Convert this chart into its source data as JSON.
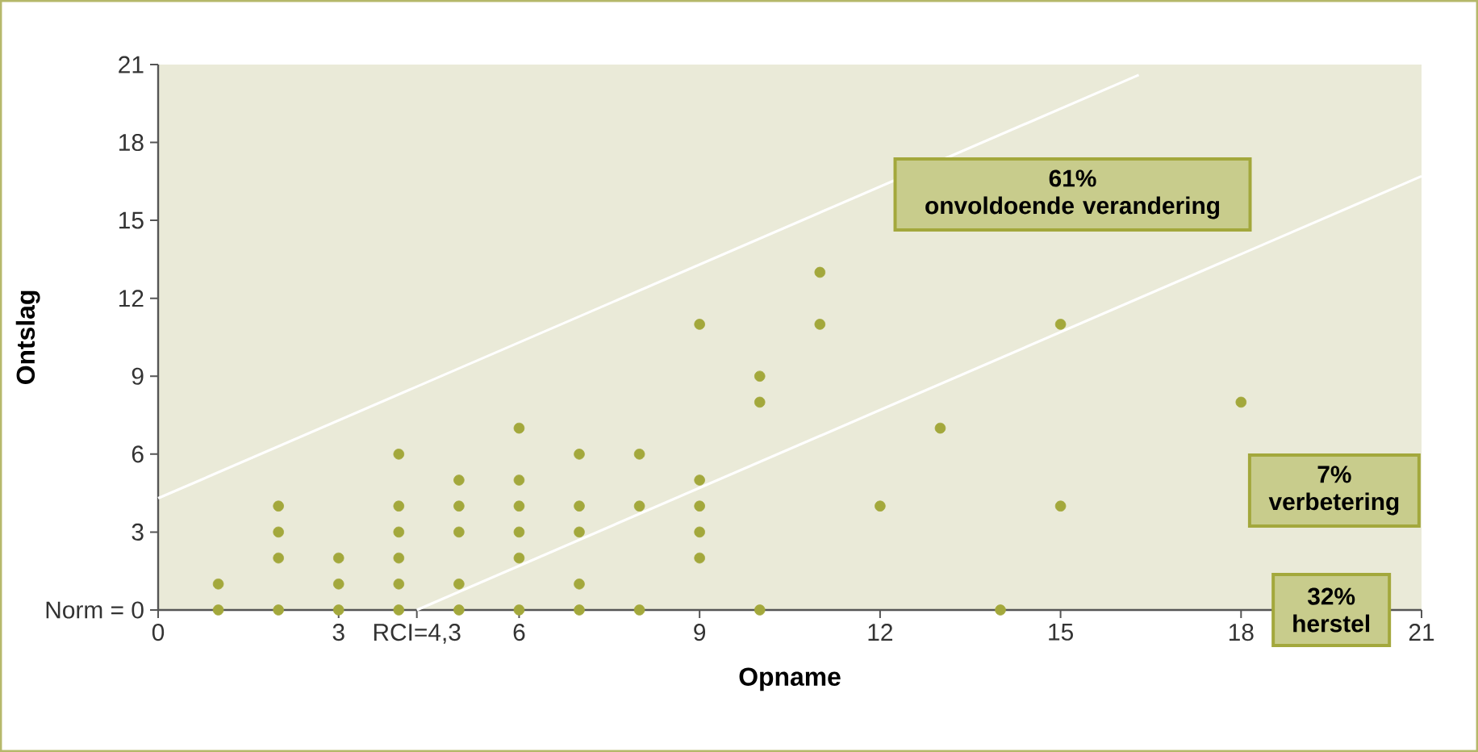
{
  "chart_data": {
    "type": "scatter",
    "xlabel": "Opname",
    "ylabel": "Ontslag",
    "xlim": [
      0,
      21
    ],
    "ylim": [
      0,
      21
    ],
    "xticks": [
      0,
      3,
      {
        "value": 4.3,
        "label": "RCI=4,3"
      },
      6,
      9,
      12,
      15,
      18,
      21
    ],
    "yticks": [
      {
        "value": 0,
        "label": "Norm = 0"
      },
      3,
      6,
      9,
      12,
      15,
      18,
      21
    ],
    "series": [
      {
        "marker": "circle",
        "color": "#a3a83c",
        "x": [
          1,
          1,
          2,
          2,
          2,
          2,
          3,
          3,
          3,
          4,
          4,
          4,
          4,
          4,
          4,
          5,
          5,
          5,
          5,
          5,
          6,
          6,
          6,
          6,
          6,
          6,
          7,
          7,
          7,
          7,
          7,
          8,
          8,
          8,
          9,
          9,
          9,
          9,
          9,
          10,
          10,
          10,
          11,
          11,
          12,
          13,
          14,
          15,
          15,
          18
        ],
        "values": [
          0,
          1,
          0,
          2,
          3,
          4,
          0,
          1,
          2,
          0,
          1,
          2,
          3,
          4,
          6,
          0,
          1,
          3,
          4,
          5,
          0,
          2,
          3,
          4,
          5,
          7,
          0,
          1,
          3,
          4,
          6,
          0,
          4,
          6,
          2,
          3,
          4,
          5,
          11,
          0,
          8,
          9,
          11,
          13,
          4,
          7,
          0,
          4,
          11,
          8
        ]
      },
      {
        "type": "line",
        "marker": "none",
        "color": "#ffffff",
        "x": [
          0,
          16.3
        ],
        "values": [
          4.3,
          20.6
        ]
      },
      {
        "type": "line",
        "marker": "none",
        "color": "#ffffff",
        "x": [
          4.3,
          21
        ],
        "values": [
          0,
          16.7
        ]
      }
    ],
    "annotations": [
      "61%",
      "onvoldoende verandering",
      "7%",
      "verbetering",
      "32%",
      "herstel"
    ]
  }
}
